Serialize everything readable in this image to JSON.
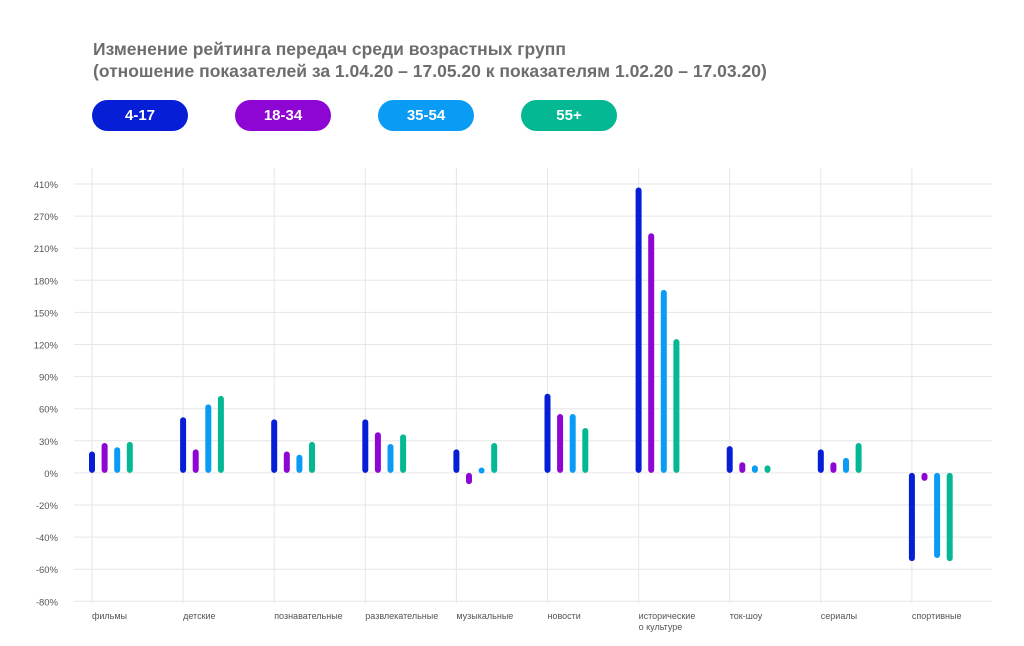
{
  "chart_data": {
    "type": "bar",
    "title": "Изменение рейтинга передач среди возрастных групп",
    "subtitle": "(отношение показателей за 1.04.20 – 17.05.20 к показателям 1.02.20 – 17.03.20)",
    "xlabel": "",
    "ylabel": "",
    "y_ticks": [
      "410%",
      "270%",
      "210%",
      "180%",
      "150%",
      "120%",
      "90%",
      "60%",
      "30%",
      "0%",
      "-20%",
      "-40%",
      "-60%",
      "-80%"
    ],
    "y_tick_values": [
      410,
      270,
      210,
      180,
      150,
      120,
      90,
      60,
      30,
      0,
      -20,
      -40,
      -60,
      -80
    ],
    "ylim": [
      -80,
      410
    ],
    "grid": true,
    "legend_position": "top-left",
    "categories": [
      "фильмы",
      "детские",
      "познавательные",
      "развлекательные",
      "музыкальные",
      "новости",
      "исторические о культуре",
      "ток-шоу",
      "сериалы",
      "спортивные"
    ],
    "category_labels": [
      [
        "фильмы"
      ],
      [
        "детские"
      ],
      [
        "познавательные"
      ],
      [
        "развлекательные"
      ],
      [
        "музыкальные"
      ],
      [
        "новости"
      ],
      [
        "исторические",
        "о культуре"
      ],
      [
        "ток-шоу"
      ],
      [
        "сериалы"
      ],
      [
        "спортивные"
      ]
    ],
    "series": [
      {
        "name": "4-17",
        "color": "#061ed6",
        "values": [
          20,
          52,
          50,
          50,
          22,
          74,
          395,
          25,
          22,
          -55
        ]
      },
      {
        "name": "18-34",
        "color": "#8e06d4",
        "values": [
          28,
          22,
          20,
          38,
          -7,
          55,
          238,
          10,
          10,
          -5
        ]
      },
      {
        "name": "35-54",
        "color": "#0a9cf5",
        "values": [
          24,
          64,
          17,
          27,
          5,
          55,
          171,
          7,
          14,
          -53
        ]
      },
      {
        "name": "55+",
        "color": "#04b894",
        "values": [
          29,
          72,
          29,
          36,
          28,
          42,
          125,
          7,
          28,
          -55
        ]
      }
    ]
  }
}
